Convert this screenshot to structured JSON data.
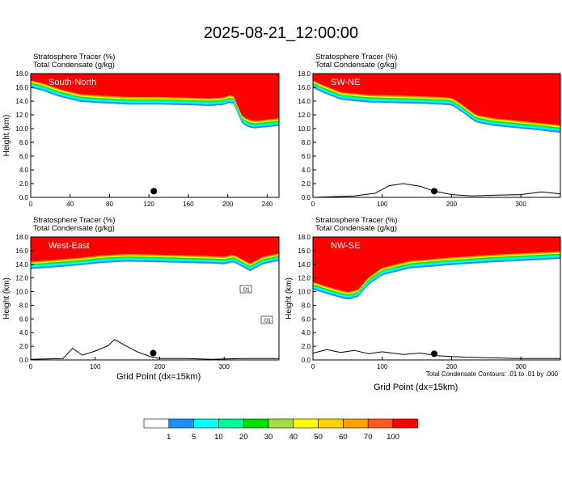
{
  "title": "2025-08-21_12:00:00",
  "colors": {
    "scale": [
      "#ffffff",
      "#1e90ff",
      "#00ffff",
      "#00fa9a",
      "#00e000",
      "#a0e040",
      "#ffff00",
      "#ffd000",
      "#ffa000",
      "#ff5a1e",
      "#ff0000"
    ]
  },
  "chart_data": [
    {
      "type": "heatmap",
      "label": "South-North",
      "left_title": "Stratosphere Tracer   (%)",
      "left_subtitle": "Total Condensate   (g/kg)",
      "ylabel": "Height (km)",
      "ylim": [
        0,
        18
      ],
      "yticks": [
        "0.0",
        "2.0",
        "4.0",
        "6.0",
        "8.0",
        "10.0",
        "12.0",
        "14.0",
        "16.0",
        "18.0"
      ],
      "xlim": [
        0,
        252
      ],
      "xticks": [
        0,
        40,
        80,
        120,
        160,
        200,
        240
      ],
      "tracer_base_km": [
        [
          0,
          15.9
        ],
        [
          10,
          15.6
        ],
        [
          30,
          14.6
        ],
        [
          50,
          13.9
        ],
        [
          70,
          13.7
        ],
        [
          100,
          13.5
        ],
        [
          130,
          13.5
        ],
        [
          160,
          13.4
        ],
        [
          180,
          13.3
        ],
        [
          195,
          13.4
        ],
        [
          205,
          13.9
        ],
        [
          215,
          10.6
        ],
        [
          225,
          10.0
        ],
        [
          240,
          10.2
        ],
        [
          252,
          10.4
        ]
      ],
      "terrain_km": [
        [
          0,
          0
        ],
        [
          252,
          0
        ]
      ],
      "marker": {
        "x": 125,
        "y": 0.9
      }
    },
    {
      "type": "heatmap",
      "label": "SW-NE",
      "left_title": "Stratosphere Tracer   (%)",
      "left_subtitle": "Total Condensate   (g/kg)",
      "ylabel": "",
      "ylim": [
        0,
        18
      ],
      "yticks": [
        "0.0",
        "2.0",
        "4.0",
        "6.0",
        "8.0",
        "10.0",
        "12.0",
        "14.0",
        "16.0",
        "18.0"
      ],
      "xlim": [
        0,
        357
      ],
      "xticks": [
        0,
        100,
        200,
        300
      ],
      "tracer_base_km": [
        [
          0,
          15.9
        ],
        [
          15,
          15.2
        ],
        [
          40,
          14.2
        ],
        [
          80,
          13.8
        ],
        [
          120,
          13.7
        ],
        [
          160,
          13.6
        ],
        [
          200,
          13.4
        ],
        [
          215,
          12.4
        ],
        [
          235,
          10.9
        ],
        [
          260,
          10.4
        ],
        [
          300,
          10.0
        ],
        [
          330,
          9.7
        ],
        [
          357,
          9.4
        ]
      ],
      "terrain_km": [
        [
          0,
          0
        ],
        [
          60,
          0.2
        ],
        [
          90,
          0.6
        ],
        [
          110,
          1.7
        ],
        [
          130,
          2.0
        ],
        [
          155,
          1.6
        ],
        [
          175,
          0.9
        ],
        [
          200,
          0.4
        ],
        [
          230,
          0.2
        ],
        [
          260,
          0.3
        ],
        [
          300,
          0.4
        ],
        [
          330,
          0.8
        ],
        [
          357,
          0.5
        ]
      ],
      "marker": {
        "x": 175,
        "y": 0.9
      }
    },
    {
      "type": "heatmap",
      "label": "West-East",
      "left_title": "Stratosphere Tracer   (%)",
      "left_subtitle": "Total Condensate   (g/kg)",
      "ylabel": "Height (km)",
      "ylim": [
        0,
        18
      ],
      "yticks": [
        "0.0",
        "2.0",
        "4.0",
        "6.0",
        "8.0",
        "10.0",
        "12.0",
        "14.0",
        "16.0",
        "18.0"
      ],
      "xlim": [
        0,
        385
      ],
      "xticks": [
        0,
        100,
        200,
        300
      ],
      "tracer_base_km": [
        [
          0,
          13.3
        ],
        [
          30,
          13.5
        ],
        [
          70,
          13.8
        ],
        [
          110,
          14.2
        ],
        [
          150,
          14.4
        ],
        [
          200,
          14.3
        ],
        [
          240,
          14.2
        ],
        [
          280,
          14.1
        ],
        [
          300,
          14.0
        ],
        [
          315,
          14.3
        ],
        [
          340,
          13.0
        ],
        [
          360,
          14.0
        ],
        [
          385,
          14.5
        ]
      ],
      "terrain_km": [
        [
          0,
          0.1
        ],
        [
          50,
          0.2
        ],
        [
          65,
          1.7
        ],
        [
          80,
          0.7
        ],
        [
          100,
          1.3
        ],
        [
          120,
          2.1
        ],
        [
          130,
          3.0
        ],
        [
          145,
          2.2
        ],
        [
          165,
          1.2
        ],
        [
          185,
          0.5
        ],
        [
          200,
          0.2
        ],
        [
          240,
          0.2
        ],
        [
          280,
          0.1
        ],
        [
          330,
          0.2
        ],
        [
          385,
          0.2
        ]
      ],
      "marker": {
        "x": 190,
        "y": 1.0
      }
    },
    {
      "type": "heatmap",
      "label": "NW-SE",
      "left_title": "Stratosphere Tracer   (%)",
      "left_subtitle": "Total Condensate   (g/kg)",
      "ylabel": "Height (km)",
      "ylim": [
        0,
        18
      ],
      "yticks": [
        "0.0",
        "2.0",
        "4.0",
        "6.0",
        "8.0",
        "10.0",
        "12.0",
        "14.0",
        "16.0",
        "18.0"
      ],
      "xlim": [
        0,
        357
      ],
      "xticks": [
        0,
        100,
        200,
        300
      ],
      "tracer_base_km": [
        [
          0,
          10.3
        ],
        [
          25,
          9.5
        ],
        [
          50,
          8.8
        ],
        [
          65,
          9.2
        ],
        [
          80,
          11.0
        ],
        [
          100,
          12.4
        ],
        [
          140,
          13.4
        ],
        [
          200,
          13.9
        ],
        [
          260,
          14.3
        ],
        [
          320,
          14.6
        ],
        [
          357,
          14.8
        ]
      ],
      "terrain_km": [
        [
          0,
          1.0
        ],
        [
          20,
          1.5
        ],
        [
          40,
          1.1
        ],
        [
          60,
          1.4
        ],
        [
          80,
          0.9
        ],
        [
          100,
          1.2
        ],
        [
          130,
          0.8
        ],
        [
          155,
          1.0
        ],
        [
          180,
          0.6
        ],
        [
          220,
          0.4
        ],
        [
          260,
          0.3
        ],
        [
          300,
          0.2
        ],
        [
          357,
          0.2
        ]
      ],
      "marker": {
        "x": 175,
        "y": 0.9
      }
    }
  ],
  "xlabel": "Grid Point (dx=15km)",
  "footer_note": "Total Condensate Contours: .01 to .01 by .000",
  "colorbar": {
    "labels": [
      "1",
      "5",
      "10",
      "20",
      "30",
      "40",
      "50",
      "60",
      "70",
      "100"
    ]
  },
  "contour_labels": [
    ".01",
    ".01"
  ]
}
